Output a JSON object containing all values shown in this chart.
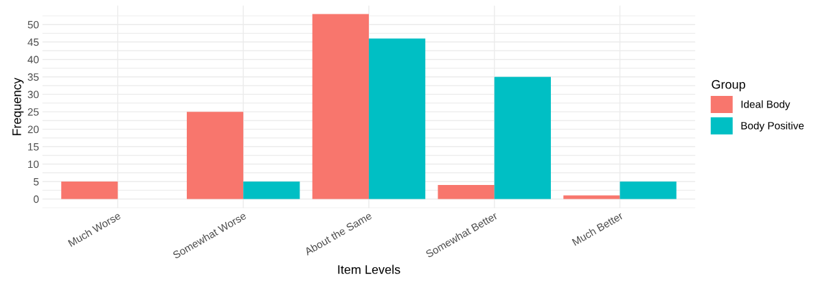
{
  "chart_data": {
    "type": "bar",
    "xlabel": "Item Levels",
    "ylabel": "Frequency",
    "legend_title": "Group",
    "categories": [
      "Much Worse",
      "Somewhat Worse",
      "About the Same",
      "Somewhat Better",
      "Much Better"
    ],
    "series": [
      {
        "name": "Ideal Body",
        "color": "#f8766d",
        "values": [
          5,
          25,
          53,
          4,
          1
        ]
      },
      {
        "name": "Body Positive",
        "color": "#00bfc4",
        "values": [
          0,
          5,
          46,
          35,
          5
        ]
      }
    ],
    "ylim": [
      -2.6,
      55.4
    ],
    "yticks": [
      0,
      5,
      10,
      15,
      20,
      25,
      30,
      35,
      40,
      45,
      50
    ],
    "grid": true,
    "legend": "right"
  }
}
